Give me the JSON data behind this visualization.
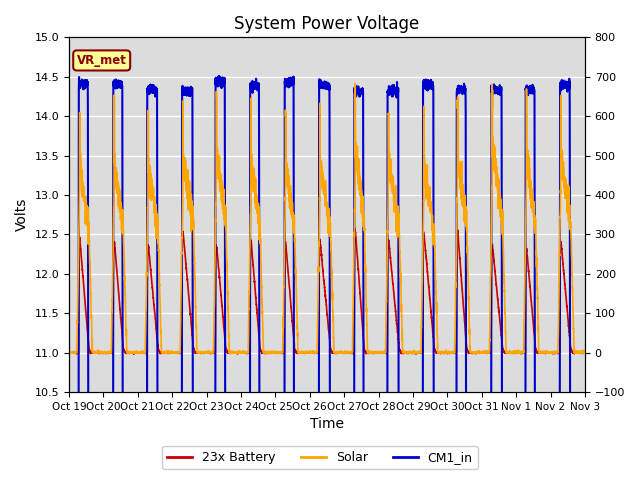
{
  "title": "System Power Voltage",
  "xlabel": "Time",
  "ylabel_left": "Volts",
  "ylim_left": [
    10.5,
    15.0
  ],
  "ylim_right": [
    -100,
    800
  ],
  "yticks_left": [
    10.5,
    11.0,
    11.5,
    12.0,
    12.5,
    13.0,
    13.5,
    14.0,
    14.5,
    15.0
  ],
  "yticks_right": [
    -100,
    0,
    100,
    200,
    300,
    400,
    500,
    600,
    700,
    800
  ],
  "xtick_labels": [
    "Oct 19",
    "Oct 20",
    "Oct 21",
    "Oct 22",
    "Oct 23",
    "Oct 24",
    "Oct 25",
    "Oct 26",
    "Oct 27",
    "Oct 28",
    "Oct 29",
    "Oct 30",
    "Oct 31",
    "Nov 1",
    "Nov 2",
    "Nov 3"
  ],
  "annotation_text": "VR_met",
  "annotation_color": "#8B0000",
  "annotation_bg": "#FFFF99",
  "background_color": "#DCDCDC",
  "series": {
    "battery": {
      "color": "#CC0000",
      "label": "23x Battery",
      "lw": 1.2
    },
    "solar": {
      "color": "#FFA500",
      "label": "Solar",
      "lw": 1.2
    },
    "cm1": {
      "color": "#0000CC",
      "label": "CM1_in",
      "lw": 1.5
    }
  },
  "num_days": 15,
  "points_per_day": 288
}
